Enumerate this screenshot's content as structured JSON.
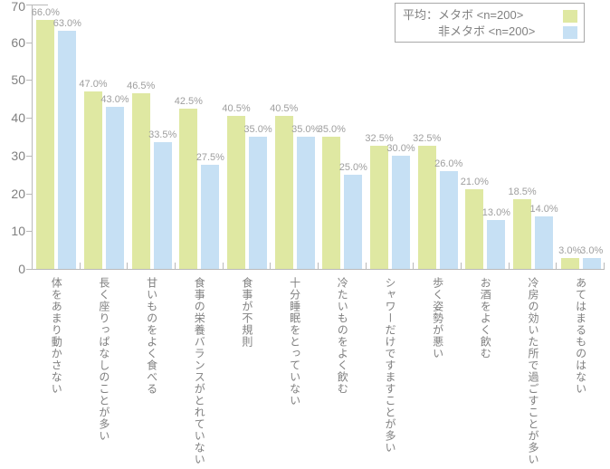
{
  "chart_data": {
    "type": "bar",
    "title": "",
    "xlabel": "",
    "ylabel": "",
    "ylim": [
      0,
      70
    ],
    "yticks": [
      0,
      10,
      20,
      30,
      40,
      50,
      60,
      70
    ],
    "grid": false,
    "legend_position": "top-right",
    "value_label_suffix": "%",
    "categories": [
      "体をあまり動かさない",
      "長く座りっぱなしのことが多い",
      "甘いものをよく食べる",
      "食事の栄養バランスがとれていない",
      "食事が不規則",
      "十分睡眠をとっていない",
      "冷たいものをよく飲む",
      "シャワーだけですますことが多い",
      "歩く姿勢が悪い",
      "お酒をよく飲む",
      "冷房の効いた所で過ごすことが多い",
      "あてはまるものはない"
    ],
    "series": [
      {
        "key": "metabo",
        "name": "メタボ <n=200>",
        "color": "#dfe8a2",
        "values": [
          66.0,
          47.0,
          46.5,
          42.5,
          40.5,
          40.5,
          35.0,
          32.5,
          32.5,
          21.0,
          18.5,
          3.0
        ]
      },
      {
        "key": "non-metabo",
        "name": "非メタボ <n=200>",
        "color": "#c6e0f4",
        "values": [
          63.0,
          43.0,
          33.5,
          27.5,
          35.0,
          35.0,
          25.0,
          30.0,
          26.0,
          13.0,
          14.0,
          3.0
        ]
      }
    ]
  },
  "legend": {
    "row1": "平均：メタボ <n=200>",
    "row2": "非メタボ <n=200>"
  },
  "colors": {
    "bar_metabo": "#dfe8a2",
    "bar_non_metabo": "#c6e0f4",
    "axis": "#b9b9b9",
    "axis_label": "#808080",
    "value_label": "#9e9e9e",
    "legend_border": "#a9a9a9"
  }
}
